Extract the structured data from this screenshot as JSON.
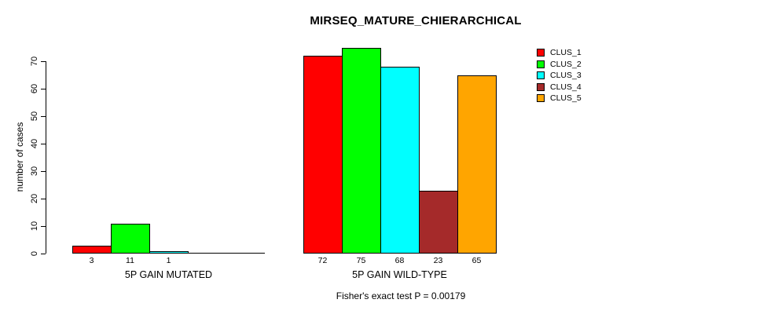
{
  "title": "MIRSEQ_MATURE_CHIERARCHICAL",
  "y_axis": {
    "label": "number of cases",
    "tick_labels": [
      "0",
      "10",
      "20",
      "30",
      "40",
      "50",
      "60",
      "70"
    ]
  },
  "footnote": "Fisher's exact test P = 0.00179",
  "legend": {
    "items": [
      {
        "label": "CLUS_1",
        "color": "#FF0000"
      },
      {
        "label": "CLUS_2",
        "color": "#00FF00"
      },
      {
        "label": "CLUS_3",
        "color": "#00FFFF"
      },
      {
        "label": "CLUS_4",
        "color": "#A52A2A"
      },
      {
        "label": "CLUS_5",
        "color": "#FFA500"
      }
    ]
  },
  "chart_data": {
    "type": "bar",
    "title": "MIRSEQ_MATURE_CHIERARCHICAL",
    "xlabel": "",
    "ylabel": "number of cases",
    "ylim": [
      0,
      70
    ],
    "yticks": [
      0,
      10,
      20,
      30,
      40,
      50,
      60,
      70
    ],
    "grid": false,
    "legend_position": "top-right",
    "categories": [
      "5P GAIN MUTATED",
      "5P GAIN WILD-TYPE"
    ],
    "series": [
      {
        "name": "CLUS_1",
        "color": "#FF0000",
        "values": [
          3,
          72
        ]
      },
      {
        "name": "CLUS_2",
        "color": "#00FF00",
        "values": [
          11,
          75
        ]
      },
      {
        "name": "CLUS_3",
        "color": "#00FFFF",
        "values": [
          1,
          68
        ]
      },
      {
        "name": "CLUS_4",
        "color": "#A52A2A",
        "values": [
          0,
          23
        ]
      },
      {
        "name": "CLUS_5",
        "color": "#FFA500",
        "values": [
          0,
          65
        ]
      }
    ],
    "bar_value_labels": {
      "5P GAIN MUTATED": [
        "3",
        "11",
        "1"
      ],
      "5P GAIN WILD-TYPE": [
        "72",
        "75",
        "68",
        "23",
        "65"
      ]
    },
    "annotation": "Fisher's exact test P = 0.00179",
    "note": "bars with value 0 are not drawn and not labeled"
  }
}
